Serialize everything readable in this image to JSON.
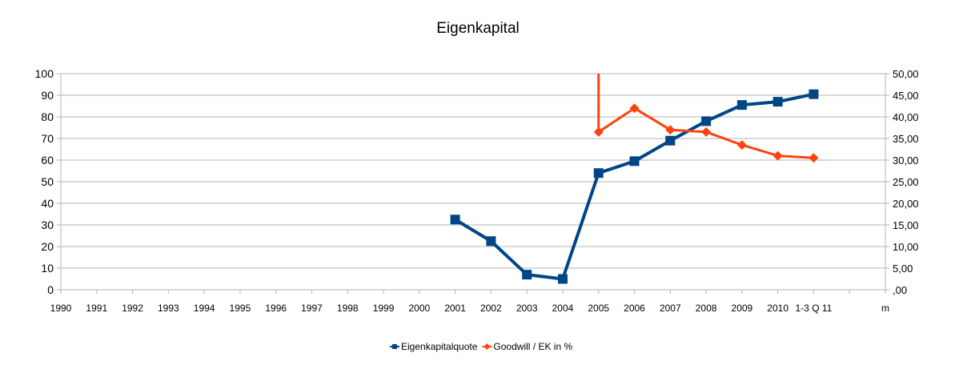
{
  "chart_data": {
    "type": "line",
    "title": "Eigenkapital",
    "categories": [
      "1990",
      "1991",
      "1992",
      "1993",
      "1994",
      "1995",
      "1996",
      "1997",
      "1998",
      "1999",
      "2000",
      "2001",
      "2002",
      "2003",
      "2004",
      "2005",
      "2006",
      "2007",
      "2008",
      "2009",
      "2010",
      "1-3 Q 11",
      "",
      "m"
    ],
    "series": [
      {
        "name": "Eigenkapitalquote",
        "axis": "left",
        "color": "#004586",
        "marker": "square",
        "values": [
          null,
          null,
          null,
          null,
          null,
          null,
          null,
          null,
          null,
          null,
          null,
          32.5,
          22.5,
          7,
          5,
          54,
          59.5,
          69,
          78,
          85.5,
          87,
          90.5,
          null,
          null
        ]
      },
      {
        "name": "Goodwill / EK in %",
        "axis": "right",
        "color": "#ff420e",
        "marker": "diamond",
        "values": [
          null,
          null,
          null,
          null,
          null,
          null,
          null,
          null,
          null,
          null,
          null,
          null,
          null,
          null,
          null,
          36.5,
          42,
          37,
          36.5,
          33.5,
          31,
          30.5,
          null,
          null
        ],
        "extra_segment": {
          "category_index": 15,
          "from": 50,
          "to": 36.5
        }
      }
    ],
    "left_axis": {
      "ylim": [
        0,
        100
      ],
      "ticks": [
        0,
        10,
        20,
        30,
        40,
        50,
        60,
        70,
        80,
        90,
        100
      ],
      "tick_labels": [
        "0",
        "10",
        "20",
        "30",
        "40",
        "50",
        "60",
        "70",
        "80",
        "90",
        "100"
      ]
    },
    "right_axis": {
      "ylim": [
        0,
        50
      ],
      "ticks": [
        0,
        5,
        10,
        15,
        20,
        25,
        30,
        35,
        40,
        45,
        50
      ],
      "tick_labels": [
        ",00",
        "5,00",
        "10,00",
        "15,00",
        "20,00",
        "25,00",
        "30,00",
        "35,00",
        "40,00",
        "45,00",
        "50,00"
      ]
    },
    "grid": true,
    "legend_position": "bottom"
  }
}
